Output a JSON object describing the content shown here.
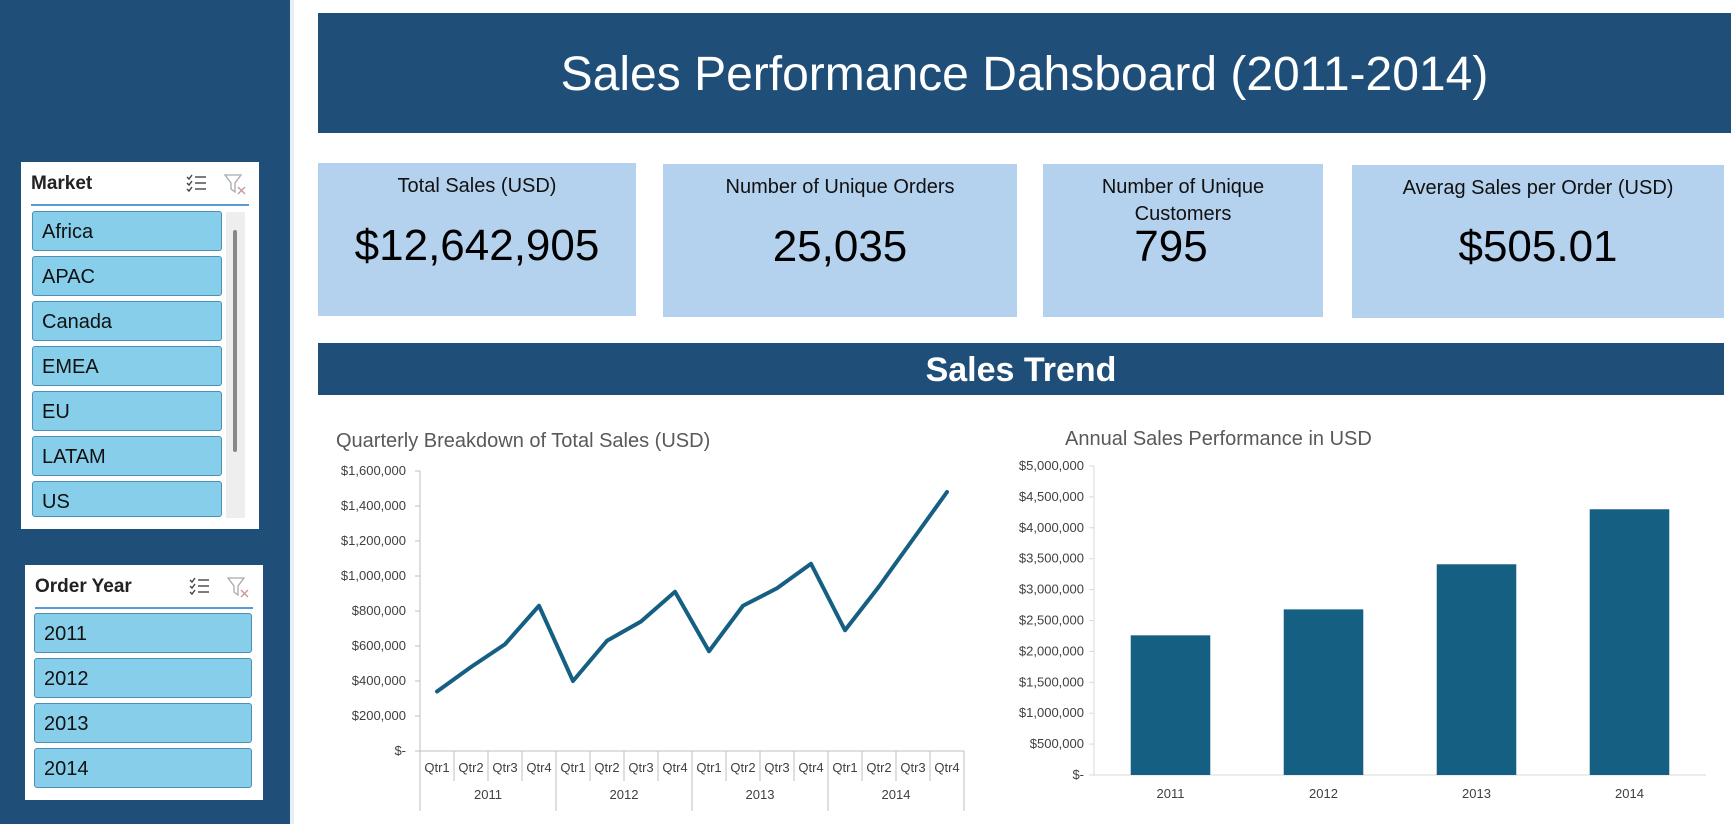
{
  "dashboard": {
    "title": "Sales Performance Dahsboard (2011-2014)",
    "section_title": "Sales Trend",
    "colors": {
      "banner": "#1f4e79",
      "kpi_card": "#b4d1ee",
      "slicer_item": "#87ceeb",
      "series": "#155f82"
    }
  },
  "market_slicer": {
    "title": "Market",
    "multiselect_icon": "multi-select-icon",
    "clear_icon": "clear-filter-icon",
    "items": [
      "Africa",
      "APAC",
      "Canada",
      "EMEA",
      "EU",
      "LATAM",
      "US"
    ]
  },
  "year_slicer": {
    "title": "Order Year",
    "multiselect_icon": "multi-select-icon",
    "clear_icon": "clear-filter-icon",
    "items": [
      "2011",
      "2012",
      "2013",
      "2014"
    ]
  },
  "kpis": [
    {
      "label": "Total Sales (USD)",
      "value": "$12,642,905"
    },
    {
      "label": "Number of Unique Orders",
      "value": "25,035"
    },
    {
      "label_line1": "Number of Unique",
      "label_line2": "Customers",
      "value": "795"
    },
    {
      "label": "Averag Sales per Order (USD)",
      "value": "$505.01"
    }
  ],
  "chart_data": [
    {
      "type": "line",
      "title": "Quarterly Breakdown of Total Sales (USD)",
      "xlabel": "",
      "ylabel": "",
      "ylim": [
        0,
        1600000
      ],
      "y_ticks": [
        "$-",
        "$200,000",
        "$400,000",
        "$600,000",
        "$800,000",
        "$1,000,000",
        "$1,200,000",
        "$1,400,000",
        "$1,600,000"
      ],
      "categories": [
        "Qtr1",
        "Qtr2",
        "Qtr3",
        "Qtr4",
        "Qtr1",
        "Qtr2",
        "Qtr3",
        "Qtr4",
        "Qtr1",
        "Qtr2",
        "Qtr3",
        "Qtr4",
        "Qtr1",
        "Qtr2",
        "Qtr3",
        "Qtr4"
      ],
      "groups": [
        "2011",
        "2012",
        "2013",
        "2014"
      ],
      "series": [
        {
          "values": [
            340000,
            480000,
            610000,
            830000,
            400000,
            630000,
            740000,
            910000,
            570000,
            830000,
            930000,
            1070000,
            690000,
            940000,
            1210000,
            1480000
          ]
        }
      ],
      "grid": false,
      "legend": "none"
    },
    {
      "type": "bar",
      "title": "Annual Sales Performance in USD",
      "xlabel": "",
      "ylabel": "",
      "ylim": [
        0,
        5000000
      ],
      "y_ticks": [
        "$-",
        "$500,000",
        "$1,000,000",
        "$1,500,000",
        "$2,000,000",
        "$2,500,000",
        "$3,000,000",
        "$3,500,000",
        "$4,000,000",
        "$4,500,000",
        "$5,000,000"
      ],
      "categories": [
        "2011",
        "2012",
        "2013",
        "2014"
      ],
      "values": [
        2260000,
        2680000,
        3410000,
        4300000
      ],
      "grid": false,
      "legend": "none"
    }
  ]
}
